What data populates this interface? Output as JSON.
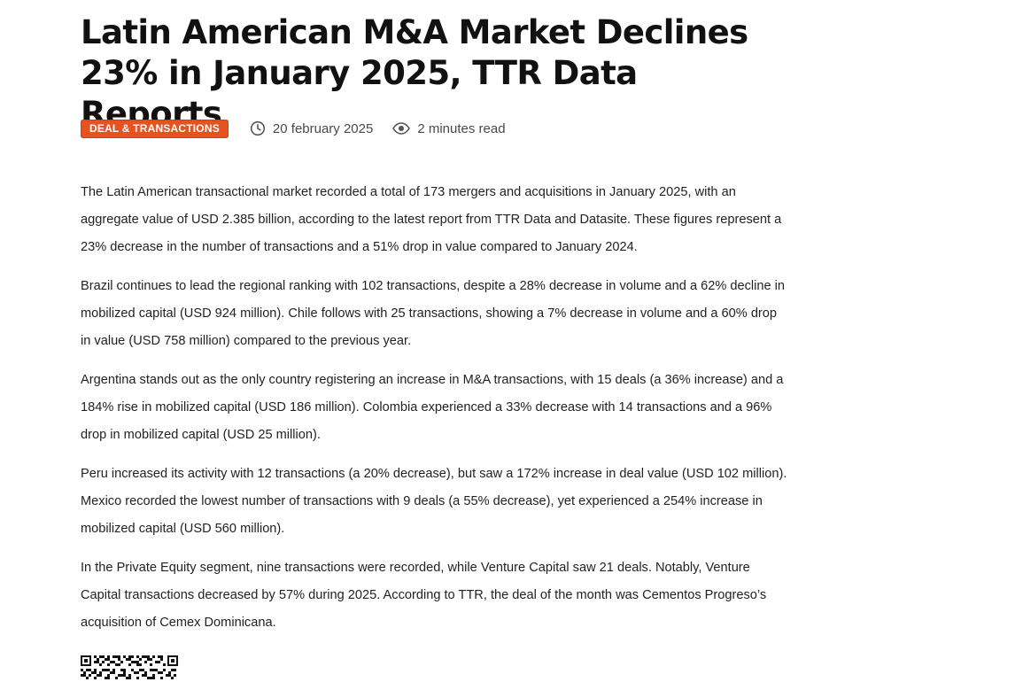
{
  "article": {
    "title": "Latin American M&A Market Declines 23% in January 2025, TTR Data Reports",
    "category": "DEAL & TRANSACTIONS",
    "date": "20 february 2025",
    "read_time": "2 minutes read",
    "icons": {
      "date": "clock-icon",
      "read_time": "eye-icon"
    },
    "accent_color": "#e8521c",
    "paragraphs": [
      "The Latin American transactional market recorded a total of 173 mergers and acquisitions in January 2025, with an aggregate value of USD 2.385 billion, according to the latest report from TTR Data and Datasite. These figures represent a 23% decrease in the number of transactions and a 51% drop in value compared to January 2024.",
      "Brazil continues to lead the regional ranking with 102 transactions, despite a 28% decrease in volume and a 62% decline in mobilized capital (USD 924 million). Chile follows with 25 transactions, showing a 7% decrease in volume and a 60% drop in value (USD 758 million) compared to the previous year.",
      "Argentina stands out as the only country registering an increase in M&A transactions, with 15 deals (a 36% increase) and a 184% rise in mobilized capital (USD 186 million). Colombia experienced a 33% decrease with 14 transactions and a 96% drop in mobilized capital (USD 25 million).",
      "Peru increased its activity with 12 transactions (a 20% decrease), but saw a 172% increase in deal value (USD 102 million). Mexico recorded the lowest number of transactions with 9 deals (a 55% decrease), yet experienced a 254% increase in mobilized capital (USD 560 million).",
      "In the Private Equity segment, nine transactions were recorded, while Venture Capital saw 21 deals. Notably, Venture Capital transactions decreased by 57% during 2025. According to TTR, the deal of the month was Cementos Progreso’s acquisition of Cemex Dominicana."
    ]
  }
}
